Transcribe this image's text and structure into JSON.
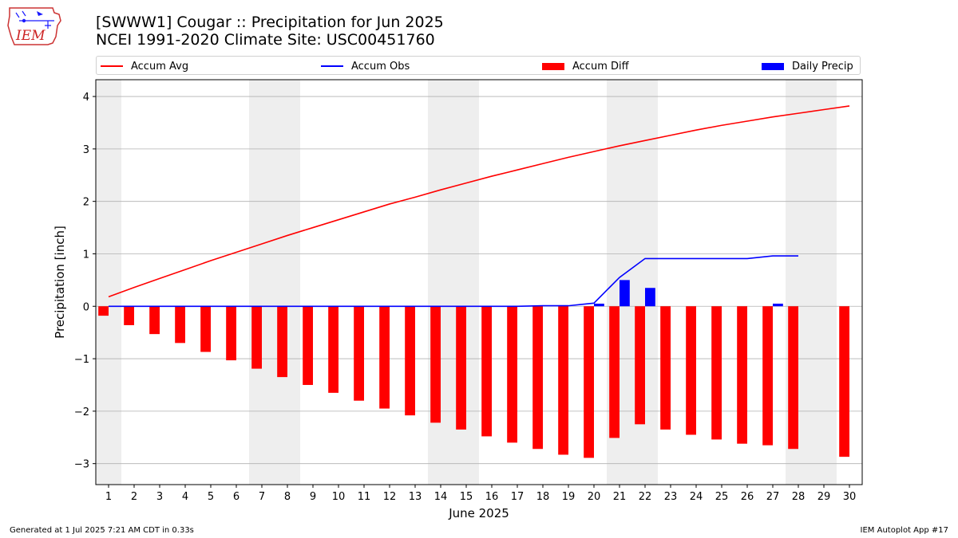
{
  "header": {
    "title_line1": "[SWWW1] Cougar :: Precipitation for Jun 2025",
    "title_line2": "NCEI 1991-2020 Climate Site: USC00451760",
    "logo_text": "IEM"
  },
  "footer": {
    "generated": "Generated at 1 Jul 2025 7:21 AM CDT in 0.33s",
    "app": "IEM Autoplot App #17"
  },
  "colors": {
    "avg": "#ff0000",
    "obs": "#0000ff",
    "diff": "#ff0000",
    "daily": "#0000ff",
    "weekend_shade": "#eeeeee",
    "grid": "#b0b0b0"
  },
  "chart_data": {
    "type": "bar",
    "xlabel": "June 2025",
    "ylabel": "Precipitation [inch]",
    "ylim": [
      -3.4,
      4.32
    ],
    "xlim": [
      0.5,
      30.5
    ],
    "yticks": [
      -3,
      -2,
      -1,
      0,
      1,
      2,
      3,
      4
    ],
    "ytick_labels": [
      "−3",
      "−2",
      "−1",
      "0",
      "1",
      "2",
      "3",
      "4"
    ],
    "days": [
      1,
      2,
      3,
      4,
      5,
      6,
      7,
      8,
      9,
      10,
      11,
      12,
      13,
      14,
      15,
      16,
      17,
      18,
      19,
      20,
      21,
      22,
      23,
      24,
      25,
      26,
      27,
      28,
      29,
      30
    ],
    "shaded_days": [
      1,
      7,
      8,
      14,
      15,
      21,
      22,
      28,
      29
    ],
    "grid": "horizontal",
    "legend": [
      {
        "label": "Accum Avg",
        "kind": "line",
        "color": "#ff0000"
      },
      {
        "label": "Accum Obs",
        "kind": "line",
        "color": "#0000ff"
      },
      {
        "label": "Accum Diff",
        "kind": "bar",
        "color": "#ff0000"
      },
      {
        "label": "Daily Precip",
        "kind": "bar",
        "color": "#0000ff"
      }
    ],
    "series": [
      {
        "name": "Accum Avg",
        "type": "line",
        "x": [
          1,
          2,
          3,
          4,
          5,
          6,
          7,
          8,
          9,
          10,
          11,
          12,
          13,
          14,
          15,
          16,
          17,
          18,
          19,
          20,
          21,
          22,
          23,
          24,
          25,
          26,
          27,
          28,
          29,
          30
        ],
        "values": [
          0.18,
          0.36,
          0.53,
          0.7,
          0.87,
          1.03,
          1.19,
          1.35,
          1.5,
          1.65,
          1.8,
          1.95,
          2.08,
          2.22,
          2.35,
          2.48,
          2.6,
          2.72,
          2.84,
          2.95,
          3.06,
          3.16,
          3.26,
          3.36,
          3.45,
          3.53,
          3.61,
          3.68,
          3.75,
          3.82
        ]
      },
      {
        "name": "Accum Obs",
        "type": "line",
        "x": [
          1,
          2,
          3,
          4,
          5,
          6,
          7,
          8,
          9,
          10,
          11,
          12,
          13,
          14,
          15,
          16,
          17,
          18,
          19,
          20,
          21,
          22,
          23,
          24,
          25,
          26,
          27,
          28
        ],
        "values": [
          0,
          0,
          0,
          0,
          0,
          0,
          0,
          0,
          0,
          0,
          0,
          0,
          0,
          0,
          0,
          0,
          0,
          0.01,
          0.01,
          0.06,
          0.55,
          0.91,
          0.91,
          0.91,
          0.91,
          0.91,
          0.96,
          0.96
        ]
      },
      {
        "name": "Accum Diff",
        "type": "bar",
        "x": [
          1,
          2,
          3,
          4,
          5,
          6,
          7,
          8,
          9,
          10,
          11,
          12,
          13,
          14,
          15,
          16,
          17,
          18,
          19,
          20,
          21,
          22,
          23,
          24,
          25,
          26,
          27,
          28,
          30
        ],
        "values": [
          -0.18,
          -0.36,
          -0.53,
          -0.7,
          -0.87,
          -1.03,
          -1.19,
          -1.35,
          -1.5,
          -1.65,
          -1.8,
          -1.95,
          -2.08,
          -2.22,
          -2.35,
          -2.48,
          -2.6,
          -2.72,
          -2.83,
          -2.89,
          -2.51,
          -2.25,
          -2.35,
          -2.45,
          -2.54,
          -2.62,
          -2.65,
          -2.72,
          -2.87
        ]
      },
      {
        "name": "Daily Precip",
        "type": "bar",
        "x": [
          20,
          21,
          22,
          27
        ],
        "values": [
          0.05,
          0.5,
          0.35,
          0.05
        ]
      }
    ]
  }
}
